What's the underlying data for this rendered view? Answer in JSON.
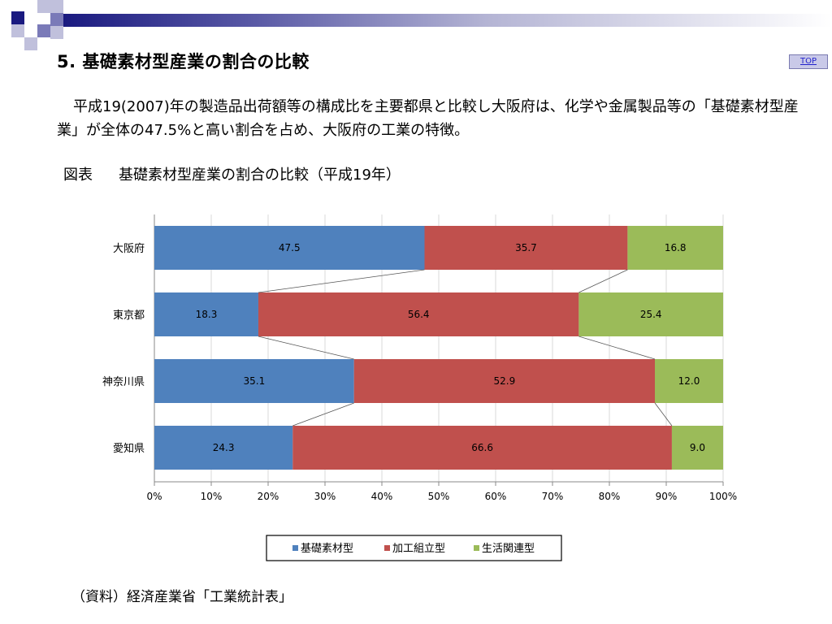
{
  "title": "5. 基礎素材型産業の割合の比較",
  "top_link": "TOP",
  "description": "平成19(2007)年の製造品出荷額等の構成比を主要都県と比較し大阪府は、化学や金属製品等の「基礎素材型産業」が全体の47.5%と高い割合を占め、大阪府の工業の特徴。",
  "figure": {
    "label": "図表",
    "caption": "基礎素材型産業の割合の比較（平成19年）"
  },
  "source": "（資料）経済産業省「工業統計表」",
  "colors": {
    "series1": "#4f81bd",
    "series2": "#c0504d",
    "series3": "#9bbb59",
    "deco_dark": "#1a1a80",
    "deco_mid": "#7a7ab8",
    "deco_light": "#c0c0dc"
  },
  "chart_data": {
    "type": "bar",
    "orientation": "horizontal",
    "stacked": "percent",
    "categories": [
      "大阪府",
      "東京都",
      "神奈川県",
      "愛知県"
    ],
    "series": [
      {
        "name": "基礎素材型",
        "values": [
          47.5,
          18.3,
          35.1,
          24.3
        ]
      },
      {
        "name": "加工組立型",
        "values": [
          35.7,
          56.4,
          52.9,
          66.6
        ]
      },
      {
        "name": "生活関連型",
        "values": [
          16.8,
          25.4,
          12.0,
          9.0
        ]
      }
    ],
    "data_labels": [
      [
        "47.5",
        "18.3",
        "35.1",
        "24.3"
      ],
      [
        "35.7",
        "56.4",
        "52.9",
        "66.6"
      ],
      [
        "16.8",
        "25.4",
        "12.0",
        "9.0"
      ]
    ],
    "xticks": [
      "0%",
      "10%",
      "20%",
      "30%",
      "40%",
      "50%",
      "60%",
      "70%",
      "80%",
      "90%",
      "100%"
    ],
    "xlim": [
      0,
      100
    ],
    "series_lines": true,
    "grid": "vertical",
    "legend": "bottom"
  }
}
